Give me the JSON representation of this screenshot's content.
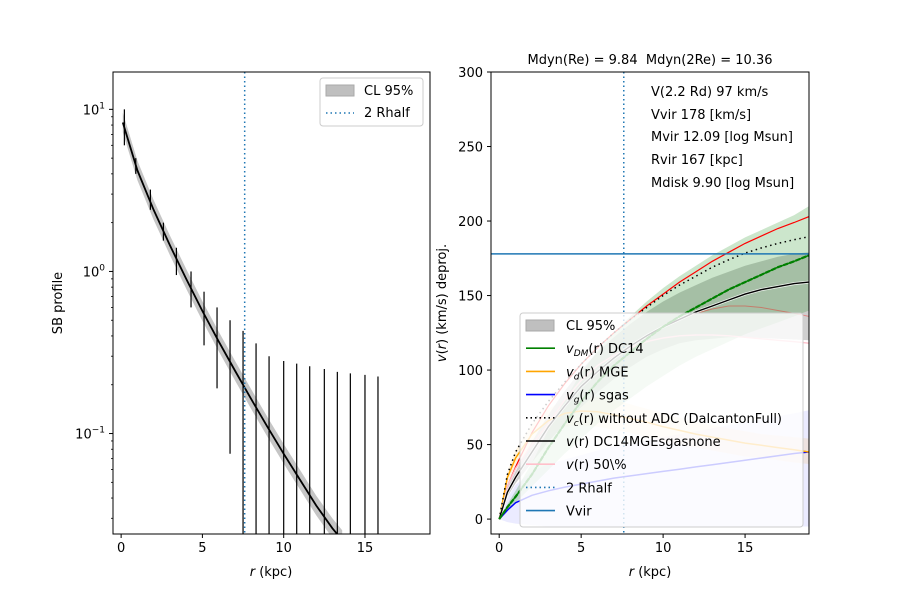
{
  "chart_data": [
    {
      "type": "line",
      "panel": "left",
      "xlabel": "r (kpc)",
      "ylabel": "SB profile",
      "yscale": "log",
      "xlim": [
        -0.5,
        19
      ],
      "ylim": [
        0.024,
        17
      ],
      "xticks": [
        0,
        5,
        10,
        15
      ],
      "yticks": [
        {
          "value": 0.1,
          "base": "10",
          "exp": "−1"
        },
        {
          "value": 1,
          "base": "10",
          "exp": "0"
        },
        {
          "value": 10,
          "base": "10",
          "exp": "1"
        }
      ],
      "legend": {
        "placement": "top-right",
        "entries": [
          "CL 95%",
          "2 Rhalf"
        ]
      },
      "colors": {
        "model": "#000000",
        "band": "#bfbfbf",
        "rhalf": "#1f77b4"
      },
      "rhalf2_x": 7.6,
      "model": {
        "x": [
          0.1,
          1,
          2,
          3,
          4,
          5,
          6,
          7,
          8,
          9,
          10,
          11,
          12,
          13,
          13.6
        ],
        "y": [
          8.3,
          4.2,
          2.4,
          1.45,
          0.9,
          0.57,
          0.37,
          0.245,
          0.163,
          0.11,
          0.075,
          0.052,
          0.036,
          0.026,
          0.022
        ]
      },
      "band_factor": 1.15,
      "observations": [
        {
          "x": 0.2,
          "low": 6.0,
          "high": 10.0
        },
        {
          "x": 0.9,
          "low": 4.0,
          "high": 5.0
        },
        {
          "x": 1.8,
          "low": 2.4,
          "high": 3.2
        },
        {
          "x": 2.6,
          "low": 1.55,
          "high": 2.0
        },
        {
          "x": 3.4,
          "low": 0.95,
          "high": 1.4
        },
        {
          "x": 4.3,
          "low": 0.6,
          "high": 1.0
        },
        {
          "x": 5.1,
          "low": 0.35,
          "high": 0.75
        },
        {
          "x": 5.9,
          "low": 0.19,
          "high": 0.6
        },
        {
          "x": 6.7,
          "low": 0.075,
          "high": 0.5
        },
        {
          "x": 7.5,
          "low": 0.02,
          "high": 0.43
        },
        {
          "x": 8.3,
          "low": 0.02,
          "high": 0.36
        },
        {
          "x": 9.1,
          "low": 0.02,
          "high": 0.3
        },
        {
          "x": 10.0,
          "low": 0.02,
          "high": 0.28
        },
        {
          "x": 10.8,
          "low": 0.02,
          "high": 0.27
        },
        {
          "x": 11.6,
          "low": 0.02,
          "high": 0.26
        },
        {
          "x": 12.5,
          "low": 0.02,
          "high": 0.25
        },
        {
          "x": 13.3,
          "low": 0.02,
          "high": 0.24
        },
        {
          "x": 14.1,
          "low": 0.02,
          "high": 0.235
        },
        {
          "x": 15.0,
          "low": 0.02,
          "high": 0.23
        },
        {
          "x": 15.8,
          "low": 0.02,
          "high": 0.225
        }
      ]
    },
    {
      "type": "line",
      "panel": "right",
      "title": "Mdyn(Re) = 9.84  Mdyn(2Re) = 10.36",
      "xlabel": "r (kpc)",
      "ylabel": "v(r) (km/s) deproj.",
      "xlim": [
        -0.5,
        18.9
      ],
      "ylim": [
        -10,
        300
      ],
      "xticks": [
        0,
        5,
        10,
        15
      ],
      "yticks": [
        0,
        50,
        100,
        150,
        200,
        250,
        300
      ],
      "legend": {
        "placement": "lower-right"
      },
      "annotations": [
        "V(2.2 Rd) 97 km/s",
        "Vvir 178 [km/s]",
        "Mvir 12.09 [log Msun]",
        "Rvir 167 [kpc]",
        "Mdisk 9.90 [log Msun]"
      ],
      "rhalf2_x": 7.6,
      "vvir": 178,
      "x": [
        0,
        0.5,
        1,
        2,
        3,
        4,
        5,
        6,
        7,
        8,
        9,
        10,
        11,
        12,
        13,
        14,
        15,
        16,
        17,
        18,
        18.9
      ],
      "series": [
        {
          "key": "dm",
          "pre": "v",
          "sub": "DM",
          "post": "(r) DC14",
          "color": "#008000",
          "width": 1.5,
          "values": [
            0,
            8,
            15,
            30,
            48,
            64,
            79,
            92,
            103,
            112,
            121,
            129,
            136,
            142,
            148,
            154,
            159,
            164,
            169,
            173,
            177
          ],
          "band_low": [
            0,
            6,
            11,
            22,
            33,
            44,
            54,
            64,
            73,
            81,
            89,
            96,
            103,
            109,
            114,
            119,
            124,
            128,
            132,
            136,
            140
          ],
          "band_high": [
            0,
            10,
            19,
            38,
            60,
            80,
            98,
            113,
            125,
            136,
            146,
            155,
            163,
            170,
            177,
            183,
            189,
            194,
            199,
            204,
            210
          ]
        },
        {
          "key": "disk",
          "pre": "v",
          "sub": "d",
          "post": "(r) MGE",
          "color": "#ffa500",
          "width": 1.5,
          "values": [
            0,
            28,
            41,
            57,
            66,
            71,
            72.5,
            72,
            70,
            67.5,
            65,
            62,
            59.5,
            57,
            55,
            53,
            51,
            49.5,
            48,
            46.5,
            45
          ],
          "band_low": [
            0,
            24,
            36,
            50,
            58,
            62,
            63,
            62,
            60,
            58,
            55,
            52,
            50,
            48,
            46,
            44,
            42,
            41,
            39.5,
            38,
            37
          ],
          "band_high": [
            0,
            32,
            46,
            64,
            74,
            80,
            82,
            82,
            80,
            77,
            74,
            71,
            68,
            65,
            63,
            61,
            59,
            57,
            56,
            55,
            54
          ]
        },
        {
          "key": "gas",
          "pre": "v",
          "sub": "g",
          "post": "(r) sgas",
          "color": "#0000ff",
          "width": 1.5,
          "values": [
            0,
            6,
            11,
            16,
            19,
            21.5,
            23.5,
            25.5,
            27.5,
            29,
            30.5,
            32,
            33.5,
            35,
            36.5,
            38,
            39.5,
            41,
            42.5,
            44,
            45
          ],
          "band_low": [
            0,
            -2,
            -3,
            -4,
            -5,
            -5,
            -5,
            -5,
            -5,
            -5,
            -5,
            -5,
            -5,
            -5,
            -5,
            -5,
            -5,
            -5,
            -5,
            -5,
            -5
          ],
          "band_high": [
            0,
            14,
            23,
            32,
            37,
            40,
            43,
            46,
            49,
            51,
            53,
            55,
            57,
            59,
            61,
            63,
            65,
            67,
            69,
            71,
            73
          ]
        },
        {
          "key": "circ",
          "pre": "v",
          "sub": "c",
          "post": "(r) without ADC (DalcantonFull)",
          "color": "#000000",
          "width": 1.5,
          "dash": "1.5,3.5",
          "values": [
            0,
            30,
            45,
            64,
            79,
            92,
            104,
            115,
            125,
            134,
            142,
            150,
            157,
            163,
            169,
            174,
            178.5,
            182,
            185,
            187.5,
            189.5
          ]
        },
        {
          "key": "total",
          "pre": "v",
          "sub": "",
          "post": "(r) DC14MGEsgasnone",
          "color": "#000000",
          "width": 1.4,
          "values": [
            0,
            18,
            28,
            45,
            62,
            76,
            89,
            99,
            108,
            116,
            123,
            129,
            134,
            139,
            143,
            147,
            151,
            154,
            156,
            158,
            159
          ]
        },
        {
          "key": "p50",
          "pre": "v",
          "sub": "",
          "post": "(r) 50\\%",
          "color": "#ffc0cb",
          "width": 1.4,
          "values": [
            0,
            22,
            34,
            50,
            64,
            80,
            93,
            103,
            110,
            115,
            119,
            121.5,
            123,
            123.5,
            123.5,
            123,
            122,
            121,
            120,
            119,
            118
          ]
        }
      ],
      "upper_red": {
        "color": "#ff0000",
        "values": [
          0,
          22,
          35,
          58,
          76,
          91,
          104,
          115,
          125,
          134,
          143,
          151,
          159,
          166,
          173,
          179,
          185,
          190,
          195,
          199,
          203
        ]
      },
      "outline": {
        "color": "#ff0000",
        "values": [
          0,
          18,
          29,
          46,
          62,
          76,
          89,
          99,
          108,
          116,
          123,
          129,
          134,
          138,
          141,
          143,
          143,
          142,
          140,
          138,
          136
        ]
      },
      "gray_band": {
        "color": "#bfbfbf",
        "low": [
          0,
          15,
          24,
          38,
          52,
          64,
          75,
          85,
          94,
          102,
          109,
          114,
          118,
          120,
          121,
          122,
          122,
          121.5,
          121,
          120.5,
          120
        ],
        "high": [
          0,
          21,
          32,
          52,
          70,
          86,
          100,
          112,
          122,
          131,
          139,
          146,
          152,
          157,
          162,
          166,
          170,
          173,
          176,
          178,
          179
        ]
      },
      "legend_entries": [
        {
          "key": "cl95",
          "label": "CL 95%",
          "kind": "patch",
          "color": "#bfbfbf"
        },
        {
          "key": "dm",
          "pre": "v",
          "sub": "DM",
          "post": "(r) DC14",
          "kind": "line",
          "color": "#008000"
        },
        {
          "key": "disk",
          "pre": "v",
          "sub": "d",
          "post": "(r) MGE",
          "kind": "line",
          "color": "#ffa500"
        },
        {
          "key": "gas",
          "pre": "v",
          "sub": "g",
          "post": "(r) sgas",
          "kind": "line",
          "color": "#0000ff"
        },
        {
          "key": "circ",
          "pre": "v",
          "sub": "c",
          "post": "(r) without ADC (DalcantonFull)",
          "kind": "dotted",
          "color": "#000000"
        },
        {
          "key": "total",
          "pre": "v",
          "sub": "",
          "post": "(r) DC14MGEsgasnone",
          "kind": "line",
          "color": "#000000"
        },
        {
          "key": "p50",
          "pre": "v",
          "sub": "",
          "post": "(r) 50\\%",
          "kind": "line",
          "color": "#ffc0cb"
        },
        {
          "key": "rhalf",
          "label": "2 Rhalf",
          "kind": "dotted",
          "color": "#1f77b4"
        },
        {
          "key": "vvir",
          "label": "Vvir",
          "kind": "line",
          "color": "#1f77b4"
        }
      ]
    }
  ]
}
